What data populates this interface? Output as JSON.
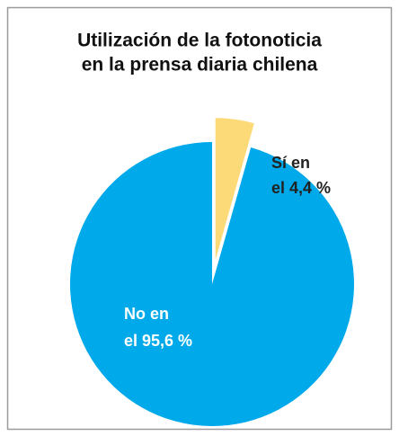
{
  "chart_data": {
    "type": "pie",
    "title": [
      "Utilización de la fotonoticia",
      "en la prensa diaria chilena"
    ],
    "categories": [
      "Sí en",
      "No en"
    ],
    "values": [
      4.4,
      95.6
    ],
    "value_labels": [
      "el 4,4 %",
      "el 95,6 %"
    ],
    "colors": [
      "#fdda78",
      "#00aaea"
    ],
    "exploded": [
      true,
      false
    ]
  }
}
